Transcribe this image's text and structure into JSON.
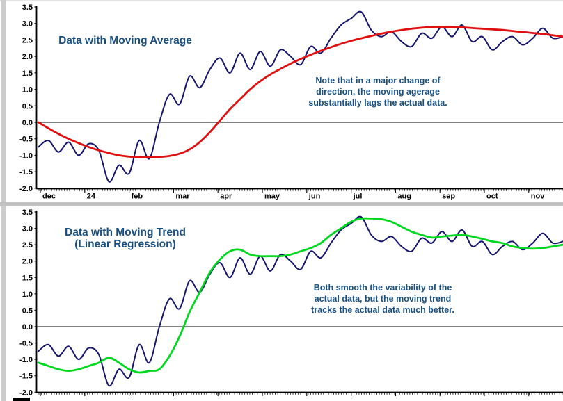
{
  "ui": {
    "text_color": "#194f80",
    "left_strip_color": "#cccccc",
    "divider_color": "#c2c2c2",
    "background": "#ffffff"
  },
  "chart_data": [
    {
      "type": "line",
      "title_lines": [
        "Data with Moving Average"
      ],
      "annotation_lines": [
        "Note that in a major change of",
        "direction, the moving agerage",
        "substantially lags the actual data."
      ],
      "x_tick_labels": [
        "dec",
        "24",
        "feb",
        "mar",
        "apr",
        "may",
        "jun",
        "jul",
        "aug",
        "sep",
        "oct",
        "nov"
      ],
      "y_ticks": [
        3.5,
        3.0,
        2.5,
        2.0,
        1.5,
        1.0,
        0.5,
        0.0,
        -0.5,
        -1.0,
        -1.5,
        -2.0
      ],
      "ylim": [
        -2.0,
        3.5
      ],
      "grid": false,
      "legend": "none",
      "series": [
        {
          "name": "actual-data",
          "color": "#15156b",
          "width": 2,
          "values": [
            -0.75,
            -0.55,
            -0.9,
            -0.6,
            -1.0,
            -0.65,
            -0.85,
            -1.8,
            -1.3,
            -1.55,
            -0.55,
            -1.1,
            0.0,
            0.85,
            0.55,
            1.4,
            1.05,
            1.6,
            1.95,
            1.5,
            2.1,
            1.6,
            2.15,
            1.7,
            2.2,
            2.0,
            1.75,
            2.3,
            2.1,
            2.55,
            2.95,
            3.15,
            3.35,
            2.8,
            2.6,
            2.75,
            2.45,
            2.3,
            2.7,
            2.55,
            2.9,
            2.6,
            2.95,
            2.45,
            2.6,
            2.2,
            2.45,
            2.6,
            2.35,
            2.55,
            2.85,
            2.55,
            2.6
          ]
        },
        {
          "name": "moving-average",
          "color": "#e11010",
          "width": 2.8,
          "values": [
            0.0,
            -0.18,
            -0.35,
            -0.5,
            -0.63,
            -0.75,
            -0.85,
            -0.93,
            -1.0,
            -1.04,
            -1.06,
            -1.06,
            -1.05,
            -1.02,
            -0.95,
            -0.82,
            -0.6,
            -0.3,
            0.05,
            0.4,
            0.7,
            1.0,
            1.25,
            1.45,
            1.62,
            1.78,
            1.92,
            2.05,
            2.17,
            2.28,
            2.38,
            2.47,
            2.55,
            2.62,
            2.69,
            2.75,
            2.8,
            2.84,
            2.87,
            2.89,
            2.9,
            2.89,
            2.88,
            2.86,
            2.84,
            2.82,
            2.8,
            2.77,
            2.74,
            2.71,
            2.68,
            2.64,
            2.6
          ]
        }
      ]
    },
    {
      "type": "line",
      "title_lines": [
        "Data with Moving Trend",
        "(Linear Regression)"
      ],
      "annotation_lines": [
        "Both smooth the variability of the",
        "actual data, but the moving trend",
        "tracks the actual data much better."
      ],
      "y_ticks": [
        3.5,
        3.0,
        2.5,
        2.0,
        1.5,
        1.0,
        0.5,
        0.0,
        -0.5,
        -1.0,
        -1.5,
        -2.0
      ],
      "ylim": [
        -2.0,
        3.5
      ],
      "grid": false,
      "legend": "none",
      "series": [
        {
          "name": "actual-data",
          "color": "#15156b",
          "width": 2,
          "values": [
            -0.75,
            -0.55,
            -0.9,
            -0.6,
            -1.0,
            -0.65,
            -0.85,
            -1.8,
            -1.3,
            -1.55,
            -0.55,
            -1.1,
            0.0,
            0.85,
            0.55,
            1.4,
            1.05,
            1.6,
            1.95,
            1.5,
            2.1,
            1.6,
            2.15,
            1.7,
            2.2,
            2.0,
            1.75,
            2.3,
            2.1,
            2.55,
            2.95,
            3.15,
            3.35,
            2.8,
            2.6,
            2.75,
            2.45,
            2.3,
            2.7,
            2.55,
            2.9,
            2.6,
            2.95,
            2.45,
            2.6,
            2.2,
            2.45,
            2.6,
            2.35,
            2.55,
            2.85,
            2.55,
            2.6
          ]
        },
        {
          "name": "moving-trend",
          "color": "#00d820",
          "width": 2.8,
          "values": [
            -1.1,
            -1.2,
            -1.3,
            -1.35,
            -1.3,
            -1.2,
            -1.1,
            -0.95,
            -1.1,
            -1.3,
            -1.4,
            -1.35,
            -1.3,
            -0.9,
            -0.3,
            0.45,
            1.05,
            1.65,
            2.05,
            2.3,
            2.35,
            2.2,
            2.15,
            2.15,
            2.15,
            2.2,
            2.3,
            2.4,
            2.55,
            2.8,
            3.0,
            3.2,
            3.3,
            3.3,
            3.28,
            3.2,
            3.05,
            2.9,
            2.8,
            2.72,
            2.75,
            2.78,
            2.8,
            2.75,
            2.68,
            2.6,
            2.55,
            2.45,
            2.4,
            2.38,
            2.4,
            2.45,
            2.5
          ]
        }
      ]
    }
  ]
}
